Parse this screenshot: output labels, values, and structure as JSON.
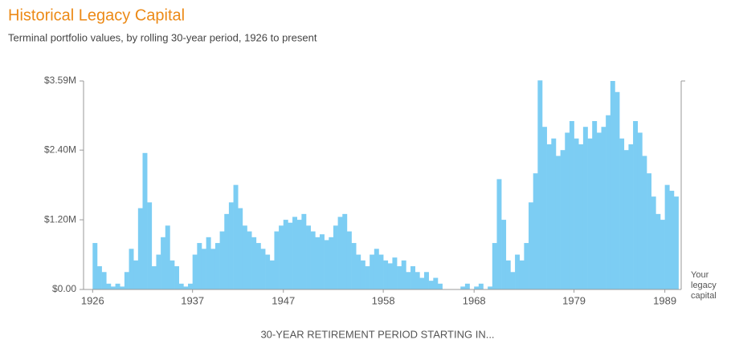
{
  "chart_data": {
    "type": "bar",
    "title": "Historical Legacy Capital",
    "subtitle": "Terminal portfolio values, by rolling 30-year period, 1926 to present",
    "x_label": "30-YEAR RETIREMENT PERIOD STARTING IN...",
    "y2_label": "Your legacy capital",
    "color": "#7ccdf3",
    "xlim": [
      1925,
      1990.8
    ],
    "xticks": [
      1926,
      1937,
      1947,
      1958,
      1968,
      1979,
      1989
    ],
    "ylim": [
      0,
      3.59
    ],
    "yticks": [
      {
        "value": 0,
        "label": "$0.00"
      },
      {
        "value": 1.2,
        "label": "$1.20M"
      },
      {
        "value": 2.4,
        "label": "$2.40M"
      },
      {
        "value": 3.59,
        "label": "$3.59M"
      }
    ],
    "grid": false,
    "x": [
      1926.0,
      1926.5,
      1927.0,
      1927.5,
      1928.0,
      1928.5,
      1929.0,
      1929.5,
      1930.0,
      1930.5,
      1931.0,
      1931.5,
      1932.0,
      1932.5,
      1933.0,
      1933.5,
      1934.0,
      1934.5,
      1935.0,
      1935.5,
      1936.0,
      1936.5,
      1937.0,
      1937.5,
      1938.0,
      1938.5,
      1939.0,
      1939.5,
      1940.0,
      1940.5,
      1941.0,
      1941.5,
      1942.0,
      1942.5,
      1943.0,
      1943.5,
      1944.0,
      1944.5,
      1945.0,
      1945.5,
      1946.0,
      1946.5,
      1947.0,
      1947.5,
      1948.0,
      1948.5,
      1949.0,
      1949.5,
      1950.0,
      1950.5,
      1951.0,
      1951.5,
      1952.0,
      1952.5,
      1953.0,
      1953.5,
      1954.0,
      1954.5,
      1955.0,
      1955.5,
      1956.0,
      1956.5,
      1957.0,
      1957.5,
      1958.0,
      1958.5,
      1959.0,
      1959.5,
      1960.0,
      1960.5,
      1961.0,
      1961.5,
      1962.0,
      1962.5,
      1963.0,
      1963.5,
      1964.0,
      1964.5,
      1965.0,
      1965.5,
      1966.0,
      1966.5,
      1967.0,
      1967.5,
      1968.0,
      1968.5,
      1969.0,
      1969.5,
      1970.0,
      1970.5,
      1971.0,
      1971.5,
      1972.0,
      1972.5,
      1973.0,
      1973.5,
      1974.0,
      1974.5,
      1975.0,
      1975.5,
      1976.0,
      1976.5,
      1977.0,
      1977.5,
      1978.0,
      1978.5,
      1979.0,
      1979.5,
      1980.0,
      1980.5,
      1981.0,
      1981.5,
      1982.0,
      1982.5,
      1983.0,
      1983.5,
      1984.0,
      1984.5,
      1985.0,
      1985.5,
      1986.0,
      1986.5,
      1987.0,
      1987.5,
      1988.0,
      1988.5,
      1989.0,
      1989.5,
      1990.0
    ],
    "values": [
      0.8,
      0.4,
      0.3,
      0.1,
      0.05,
      0.1,
      0.05,
      0.3,
      0.7,
      0.5,
      1.4,
      2.35,
      1.5,
      0.4,
      0.6,
      0.9,
      1.1,
      0.5,
      0.4,
      0.1,
      0.05,
      0.1,
      0.6,
      0.8,
      0.7,
      0.9,
      0.7,
      0.8,
      1.0,
      1.3,
      1.5,
      1.8,
      1.4,
      1.1,
      1.0,
      0.9,
      0.8,
      0.7,
      0.6,
      0.5,
      1.0,
      1.1,
      1.2,
      1.15,
      1.25,
      1.2,
      1.3,
      1.1,
      1.0,
      0.9,
      0.95,
      0.85,
      0.9,
      1.1,
      1.25,
      1.3,
      1.0,
      0.8,
      0.6,
      0.5,
      0.4,
      0.6,
      0.7,
      0.6,
      0.5,
      0.45,
      0.55,
      0.4,
      0.5,
      0.3,
      0.4,
      0.3,
      0.2,
      0.3,
      0.15,
      0.2,
      0.1,
      0,
      0,
      0,
      0,
      0.05,
      0.1,
      0,
      0.05,
      0.1,
      0,
      0.05,
      0.8,
      1.9,
      1.2,
      0.5,
      0.3,
      0.6,
      0.5,
      0.8,
      1.5,
      2.0,
      3.6,
      2.8,
      2.5,
      2.6,
      2.3,
      2.4,
      2.7,
      2.9,
      2.6,
      2.5,
      2.8,
      2.6,
      2.9,
      2.7,
      2.8,
      3.0,
      3.59,
      3.4,
      2.6,
      2.4,
      2.5,
      2.9,
      2.7,
      2.3,
      2.0,
      1.6,
      1.3,
      1.2,
      1.8,
      1.7,
      1.6
    ]
  }
}
